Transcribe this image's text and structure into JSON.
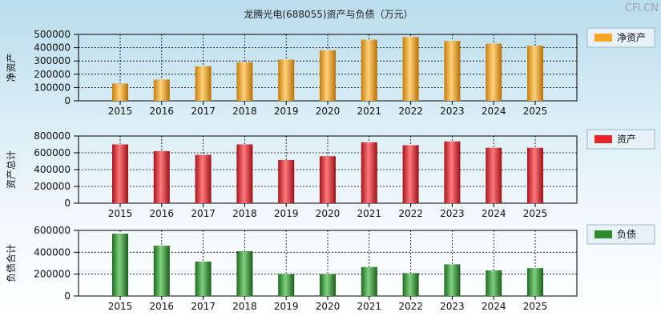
{
  "title": "龙腾光电(688055)资产与负债（万元）",
  "watermark": "CFi.CN",
  "chart_data": [
    {
      "type": "bar",
      "ylabel": "净资产",
      "legend": "净资产",
      "color": "#f5a623",
      "ylim": [
        0,
        500000
      ],
      "yticks": [
        0,
        100000,
        200000,
        300000,
        400000,
        500000
      ],
      "categories": [
        "2015",
        "2016",
        "2017",
        "2018",
        "2019",
        "2020",
        "2021",
        "2022",
        "2023",
        "2024",
        "2025"
      ],
      "values": [
        130000,
        160000,
        260000,
        290000,
        310000,
        380000,
        460000,
        480000,
        450000,
        430000,
        415000
      ]
    },
    {
      "type": "bar",
      "ylabel": "资产总计",
      "legend": "资产",
      "color": "#e8232a",
      "ylim": [
        0,
        800000
      ],
      "yticks": [
        0,
        200000,
        400000,
        600000,
        800000
      ],
      "categories": [
        "2015",
        "2016",
        "2017",
        "2018",
        "2019",
        "2020",
        "2021",
        "2022",
        "2023",
        "2024",
        "2025"
      ],
      "values": [
        700000,
        620000,
        575000,
        700000,
        515000,
        560000,
        725000,
        690000,
        735000,
        660000,
        660000
      ]
    },
    {
      "type": "bar",
      "ylabel": "负债合计",
      "legend": "负债",
      "color": "#2e8b2e",
      "ylim": [
        0,
        600000
      ],
      "yticks": [
        0,
        200000,
        400000,
        600000
      ],
      "categories": [
        "2015",
        "2016",
        "2017",
        "2018",
        "2019",
        "2020",
        "2021",
        "2022",
        "2023",
        "2024",
        "2025"
      ],
      "values": [
        570000,
        460000,
        315000,
        410000,
        200000,
        200000,
        265000,
        210000,
        290000,
        235000,
        255000
      ]
    }
  ]
}
